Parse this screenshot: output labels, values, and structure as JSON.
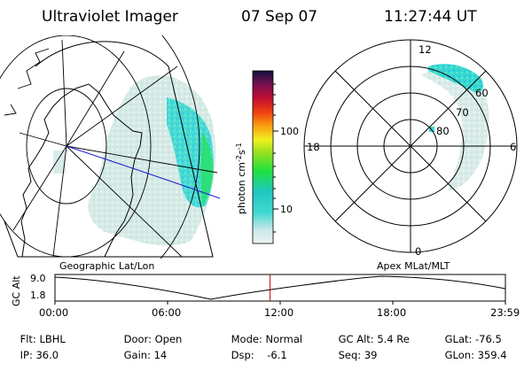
{
  "header": {
    "instrument": "Ultraviolet Imager",
    "date": "07 Sep 07",
    "time": "11:27:44 UT"
  },
  "colorbar": {
    "unit_label": "photon cm",
    "unit_sup1": "-2",
    "unit_mid": "s",
    "unit_sup2": "-1",
    "ticks": [
      "100",
      "10"
    ]
  },
  "geographic_panel": {
    "label": "Geographic Lat/Lon"
  },
  "polar_panel": {
    "label": "Apex  MLat/MLT",
    "mlt_labels": {
      "top": "12",
      "left": "18",
      "right": "6",
      "bottom": "0"
    },
    "lat_labels": [
      "60",
      "70",
      "80"
    ]
  },
  "orbit_plot": {
    "axis_title": "GC Alt",
    "y_ticks": [
      "9.0",
      "1.8"
    ],
    "x_ticks": [
      "00:00",
      "06:00",
      "12:00",
      "18:00",
      "23:59"
    ],
    "current_time_fraction": 0.4776
  },
  "info": {
    "row1": [
      {
        "label": "Flt:",
        "value": "LBHL"
      },
      {
        "label": "Door:",
        "value": "Open"
      },
      {
        "label": "Mode:",
        "value": "Normal"
      },
      {
        "label": "GC Alt:",
        "value": "5.4 Re"
      },
      {
        "label": "GLat:",
        "value": "-76.5"
      }
    ],
    "row2": [
      {
        "label": "IP:",
        "value": "36.0"
      },
      {
        "label": "Gain:",
        "value": "14"
      },
      {
        "label": "Dsp:",
        "value": "   -6.1"
      },
      {
        "label": "Seq:",
        "value": "39"
      },
      {
        "label": "GLon:",
        "value": "359.4"
      }
    ]
  },
  "colors": {
    "aurora_low": "#c8e8e0",
    "aurora_mid": "#30d8d0",
    "aurora_high": "#28e070",
    "track_line": "#2020d0",
    "time_marker": "#c00000"
  }
}
